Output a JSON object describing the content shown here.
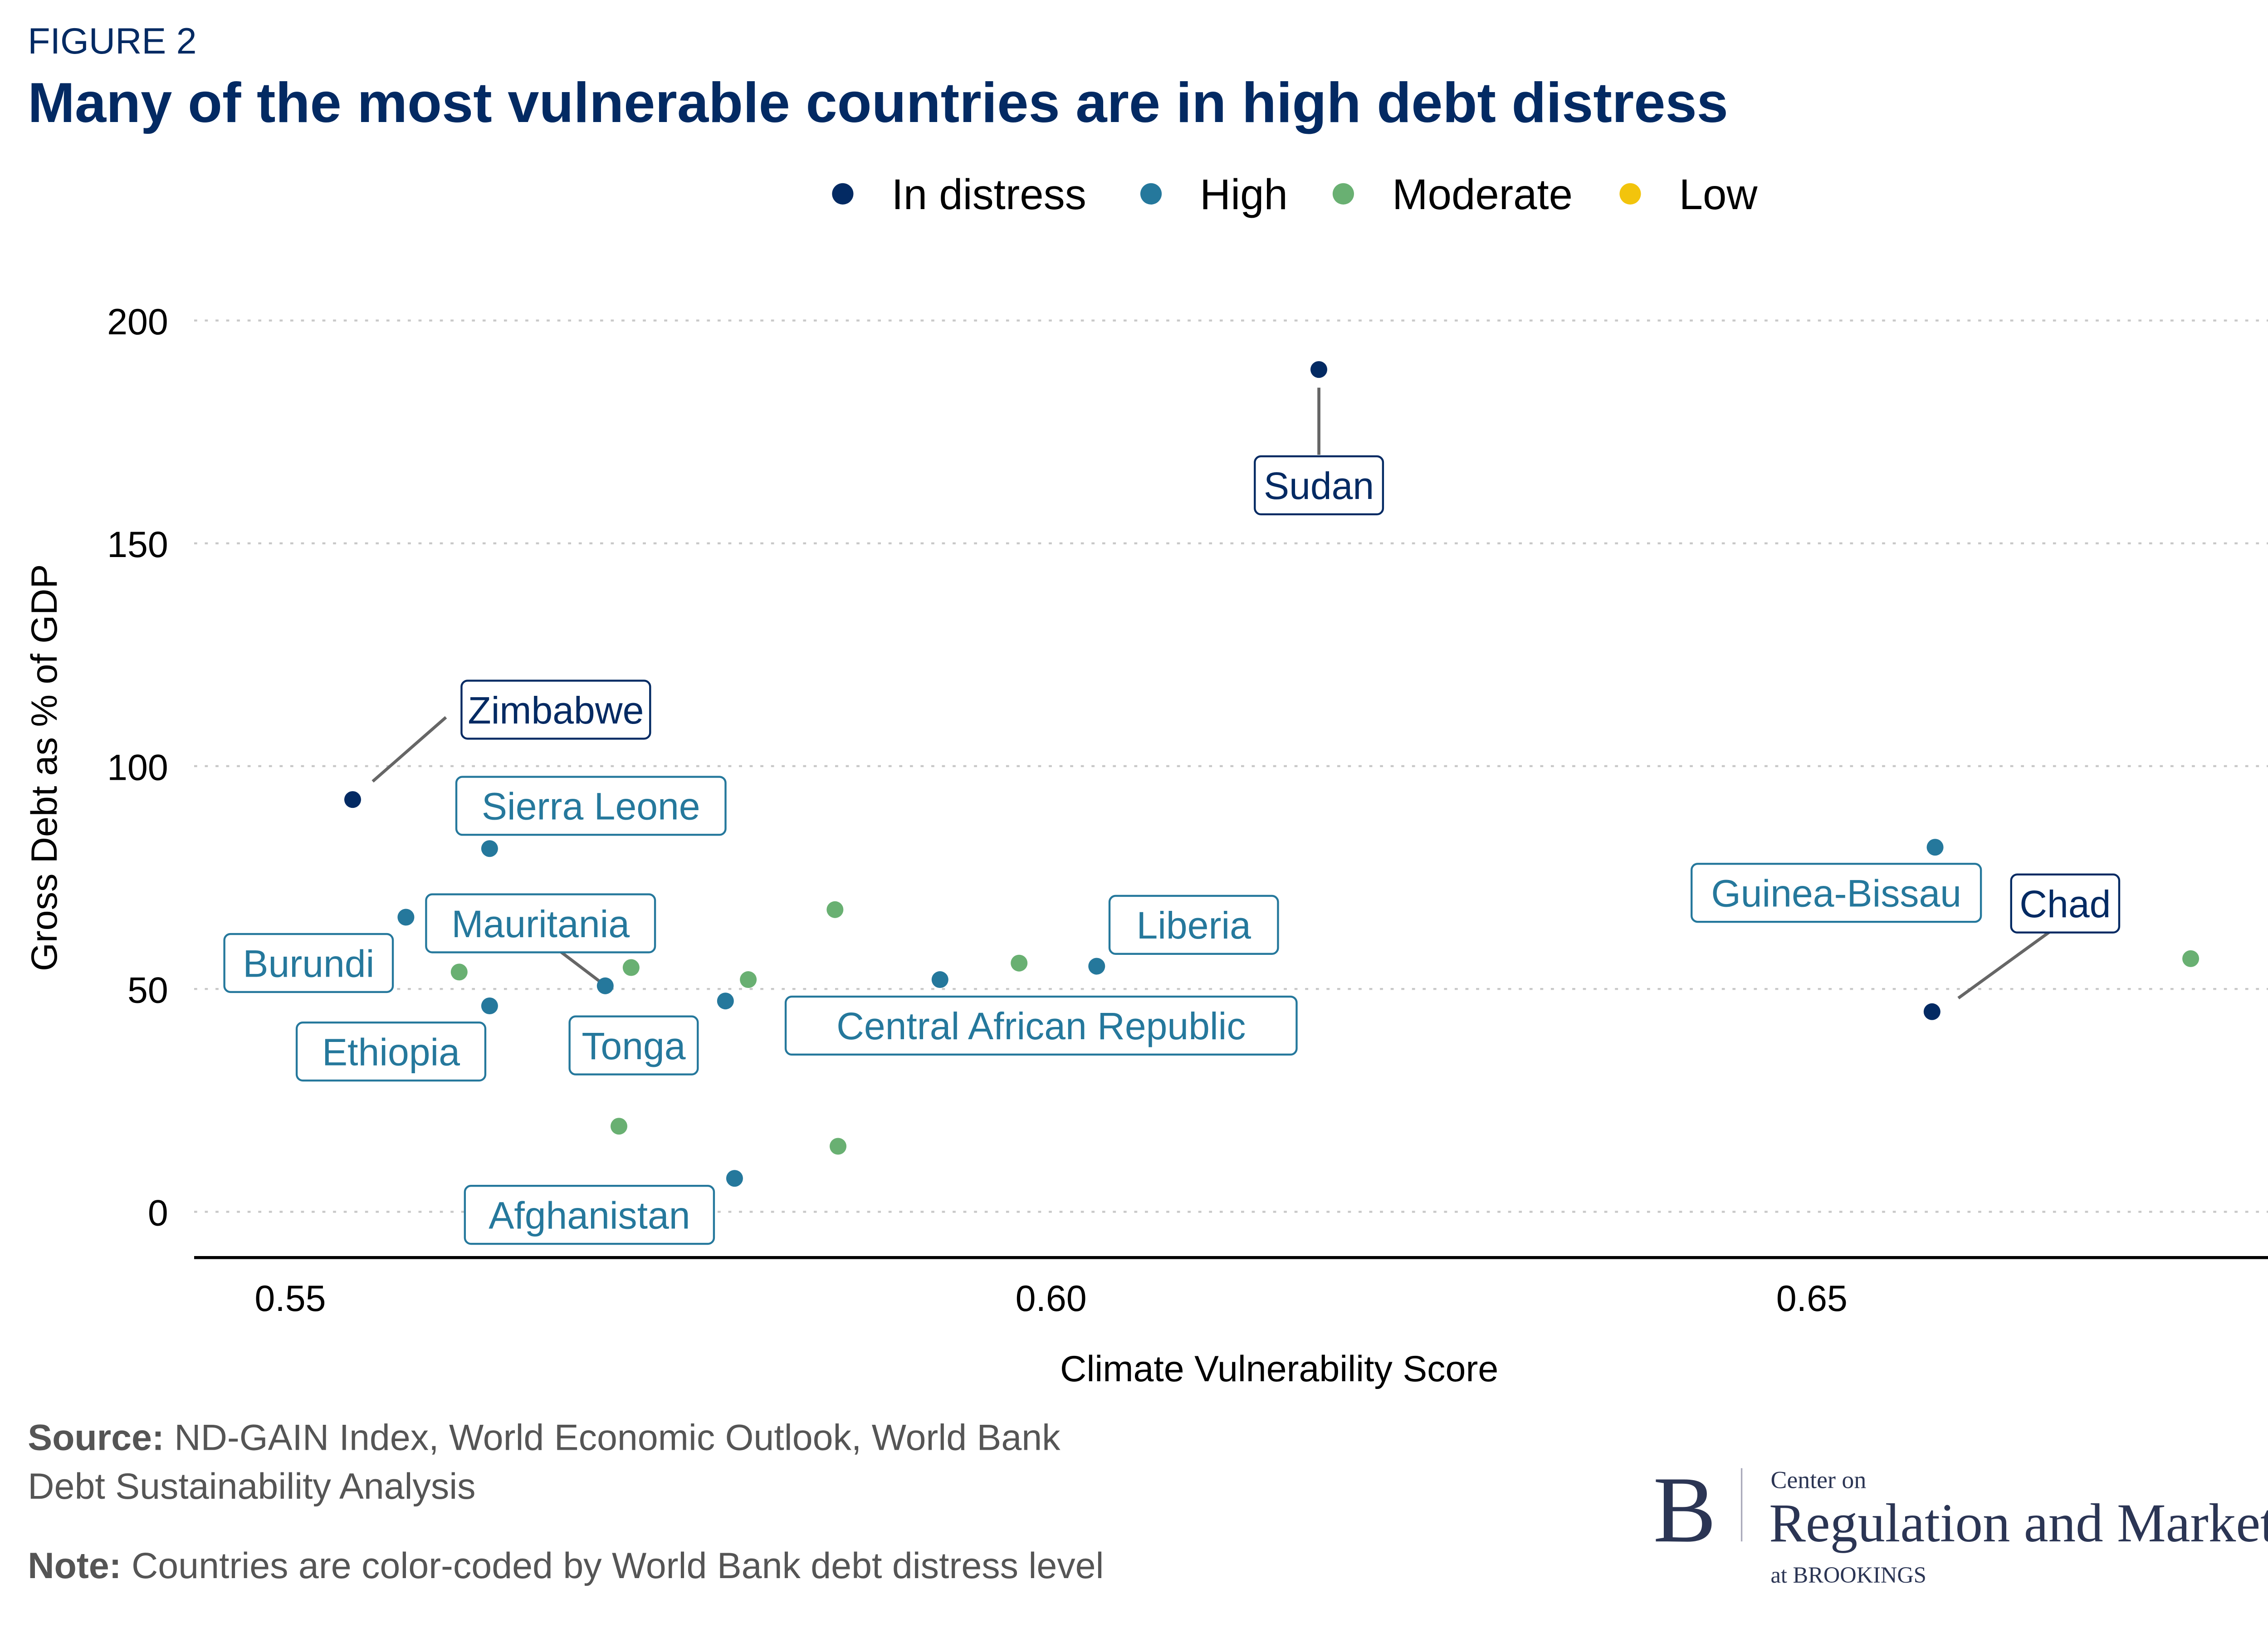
{
  "header": {
    "figure_label": "FIGURE 2",
    "title": "Many of the most vulnerable countries are in high debt distress"
  },
  "colors": {
    "In distress": "#032a63",
    "High": "#25789c",
    "Moderate": "#69b072",
    "Low": "#f2c40c",
    "title": "#032a63",
    "gridline": "#c8c8c8",
    "footer_text": "#555555",
    "logo": "#2b3554"
  },
  "chart_data": {
    "type": "scatter",
    "title": "Many of the most vulnerable countries are in high debt distress",
    "xlabel": "Climate Vulnerability Score",
    "ylabel": "Gross Debt as % of GDP",
    "xlim": [
      0.544,
      0.687
    ],
    "ylim": [
      -10,
      210
    ],
    "x_ticks": [
      0.55,
      0.6,
      0.65
    ],
    "x_tick_labels": [
      "0.55",
      "0.60",
      "0.65"
    ],
    "y_ticks": [
      0,
      50,
      100,
      150,
      200
    ],
    "y_tick_labels": [
      "0",
      "50",
      "100",
      "150",
      "200"
    ],
    "grid": "horizontal dotted",
    "legend": {
      "placement": "top",
      "entries": [
        "In distress",
        "High",
        "Moderate",
        "Low"
      ]
    },
    "points": [
      {
        "x": 0.6176,
        "y": 189.0,
        "category": "In distress",
        "label": "Sudan"
      },
      {
        "x": 0.5541,
        "y": 92.5,
        "category": "In distress",
        "label": "Zimbabwe"
      },
      {
        "x": 0.6579,
        "y": 44.9,
        "category": "In distress",
        "label": "Chad"
      },
      {
        "x": 0.5631,
        "y": 81.5,
        "category": "High",
        "label": "Sierra Leone"
      },
      {
        "x": 0.5576,
        "y": 66.1,
        "category": "High",
        "label": "Burundi"
      },
      {
        "x": 0.5631,
        "y": 46.2,
        "category": "High",
        "label": "Ethiopia"
      },
      {
        "x": 0.5707,
        "y": 50.7,
        "category": "High",
        "label": "Mauritania"
      },
      {
        "x": 0.5786,
        "y": 47.3,
        "category": "High",
        "label": "Tonga"
      },
      {
        "x": 0.5792,
        "y": 7.5,
        "category": "High",
        "label": "Afghanistan"
      },
      {
        "x": 0.5927,
        "y": 52.1,
        "category": "High",
        "label": "Central African Republic"
      },
      {
        "x": 0.603,
        "y": 55.1,
        "category": "High",
        "label": "Liberia"
      },
      {
        "x": 0.6581,
        "y": 81.8,
        "category": "High",
        "label": "Guinea-Bissau"
      },
      {
        "x": 0.5611,
        "y": 53.8,
        "category": "Moderate"
      },
      {
        "x": 0.5724,
        "y": 54.8,
        "category": "Moderate"
      },
      {
        "x": 0.5716,
        "y": 19.2,
        "category": "Moderate"
      },
      {
        "x": 0.5801,
        "y": 52.1,
        "category": "Moderate"
      },
      {
        "x": 0.5858,
        "y": 67.8,
        "category": "Moderate"
      },
      {
        "x": 0.586,
        "y": 14.7,
        "category": "Moderate"
      },
      {
        "x": 0.5979,
        "y": 55.8,
        "category": "Moderate"
      },
      {
        "x": 0.6749,
        "y": 56.8,
        "category": "Moderate"
      }
    ]
  },
  "footer": {
    "source_label": "Source:",
    "source_text_line1": " ND-GAIN Index, World Economic Outlook, World Bank",
    "source_text_line2": "Debt Sustainability Analysis",
    "note_label": "Note:",
    "note_text": " Countries are color-coded by World Bank debt distress level"
  },
  "logo": {
    "letter": "B",
    "line1": "Center on",
    "line2": "Regulation and Markets",
    "line3": "at BROOKINGS"
  }
}
